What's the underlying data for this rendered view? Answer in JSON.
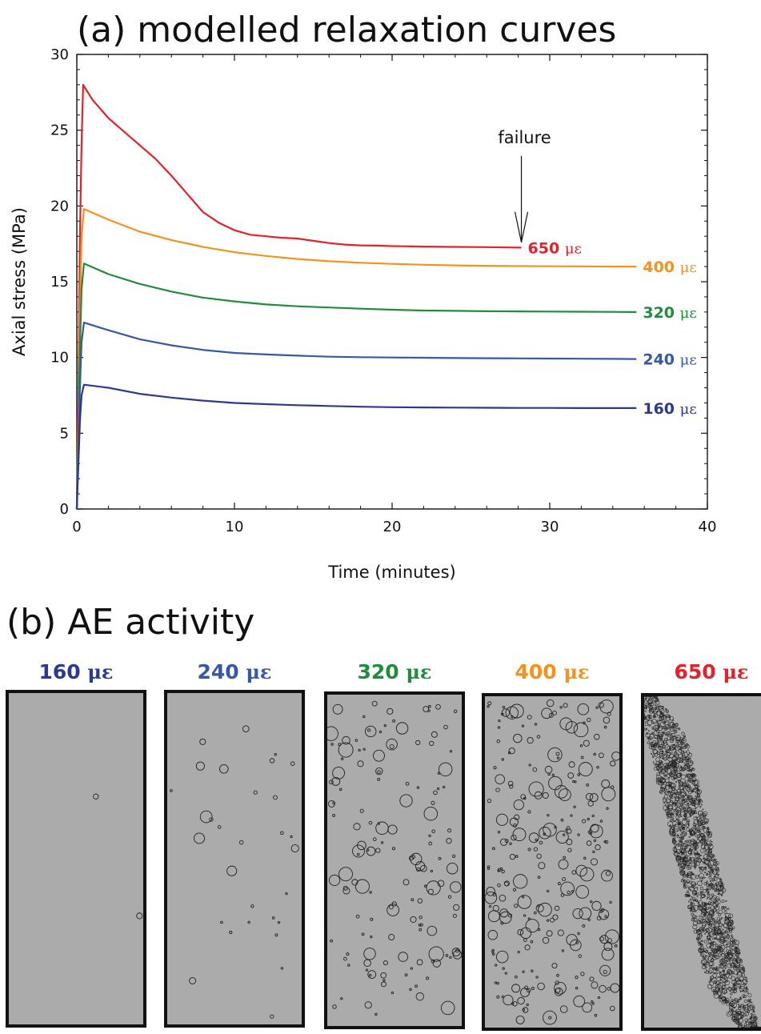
{
  "panel_a_title": "(a) modelled relaxation curves",
  "panel_b_title": "(b) AE activity",
  "unit_symbol": "με",
  "chart_data": {
    "type": "line",
    "title": "(a) modelled relaxation curves",
    "xlabel": "Time (minutes)",
    "ylabel": "Axial stress (MPa)",
    "xlim": [
      0,
      40
    ],
    "ylim": [
      0,
      30
    ],
    "xticks": [
      0,
      10,
      20,
      30,
      40
    ],
    "yticks": [
      0,
      5,
      10,
      15,
      20,
      25,
      30
    ],
    "grid": false,
    "series": [
      {
        "name": "650",
        "color": "#e8202a",
        "points": [
          [
            0,
            0
          ],
          [
            0.1,
            8
          ],
          [
            0.2,
            18
          ],
          [
            0.3,
            24
          ],
          [
            0.4,
            28
          ],
          [
            1,
            27
          ],
          [
            2,
            25.8
          ],
          [
            3,
            24.9
          ],
          [
            4,
            24
          ],
          [
            5,
            23.1
          ],
          [
            6,
            22
          ],
          [
            7,
            20.8
          ],
          [
            8,
            19.6
          ],
          [
            9,
            18.9
          ],
          [
            10,
            18.4
          ],
          [
            11,
            18.1
          ],
          [
            12,
            18
          ],
          [
            13,
            17.9
          ],
          [
            14,
            17.85
          ],
          [
            15,
            17.7
          ],
          [
            16,
            17.55
          ],
          [
            17,
            17.45
          ],
          [
            18,
            17.4
          ],
          [
            19,
            17.38
          ],
          [
            20,
            17.35
          ],
          [
            22,
            17.32
          ],
          [
            24,
            17.3
          ],
          [
            26,
            17.28
          ],
          [
            28.2,
            17.25
          ]
        ]
      },
      {
        "name": "400",
        "color": "#f5921e",
        "points": [
          [
            0,
            0
          ],
          [
            0.1,
            6
          ],
          [
            0.2,
            13
          ],
          [
            0.3,
            18
          ],
          [
            0.45,
            19.8
          ],
          [
            2,
            19.1
          ],
          [
            4,
            18.3
          ],
          [
            6,
            17.75
          ],
          [
            8,
            17.3
          ],
          [
            10,
            16.95
          ],
          [
            12,
            16.7
          ],
          [
            14,
            16.5
          ],
          [
            16,
            16.35
          ],
          [
            18,
            16.25
          ],
          [
            20,
            16.18
          ],
          [
            22,
            16.12
          ],
          [
            24,
            16.08
          ],
          [
            26,
            16.05
          ],
          [
            28,
            16.03
          ],
          [
            30,
            16.02
          ],
          [
            32,
            16.01
          ],
          [
            34,
            16
          ],
          [
            35.5,
            16
          ]
        ]
      },
      {
        "name": "320",
        "color": "#1f8c3e",
        "points": [
          [
            0,
            0
          ],
          [
            0.1,
            5
          ],
          [
            0.2,
            10.5
          ],
          [
            0.3,
            14.5
          ],
          [
            0.45,
            16.2
          ],
          [
            2,
            15.5
          ],
          [
            4,
            14.85
          ],
          [
            6,
            14.35
          ],
          [
            8,
            13.95
          ],
          [
            10,
            13.7
          ],
          [
            12,
            13.5
          ],
          [
            14,
            13.38
          ],
          [
            16,
            13.3
          ],
          [
            18,
            13.22
          ],
          [
            20,
            13.15
          ],
          [
            22,
            13.1
          ],
          [
            24,
            13.08
          ],
          [
            26,
            13.05
          ],
          [
            28,
            13.04
          ],
          [
            30,
            13.03
          ],
          [
            32,
            13.02
          ],
          [
            34,
            13.01
          ],
          [
            35.5,
            13
          ]
        ]
      },
      {
        "name": "240",
        "color": "#3757a8",
        "points": [
          [
            0,
            0
          ],
          [
            0.1,
            4
          ],
          [
            0.2,
            8
          ],
          [
            0.3,
            11
          ],
          [
            0.45,
            12.3
          ],
          [
            2,
            11.8
          ],
          [
            4,
            11.2
          ],
          [
            6,
            10.8
          ],
          [
            8,
            10.5
          ],
          [
            10,
            10.3
          ],
          [
            12,
            10.2
          ],
          [
            14,
            10.12
          ],
          [
            16,
            10.05
          ],
          [
            18,
            10.02
          ],
          [
            20,
            10
          ],
          [
            22,
            9.98
          ],
          [
            24,
            9.96
          ],
          [
            26,
            9.95
          ],
          [
            28,
            9.94
          ],
          [
            30,
            9.93
          ],
          [
            32,
            9.92
          ],
          [
            34,
            9.91
          ],
          [
            35.5,
            9.9
          ]
        ]
      },
      {
        "name": "160",
        "color": "#2b3990",
        "points": [
          [
            0,
            0
          ],
          [
            0.1,
            3
          ],
          [
            0.2,
            5.8
          ],
          [
            0.3,
            7.5
          ],
          [
            0.45,
            8.2
          ],
          [
            2,
            8
          ],
          [
            4,
            7.6
          ],
          [
            6,
            7.35
          ],
          [
            8,
            7.15
          ],
          [
            10,
            7
          ],
          [
            12,
            6.92
          ],
          [
            14,
            6.85
          ],
          [
            16,
            6.8
          ],
          [
            18,
            6.75
          ],
          [
            20,
            6.72
          ],
          [
            22,
            6.7
          ],
          [
            24,
            6.69
          ],
          [
            26,
            6.68
          ],
          [
            28,
            6.67
          ],
          [
            30,
            6.67
          ],
          [
            32,
            6.66
          ],
          [
            34,
            6.66
          ],
          [
            35.5,
            6.66
          ]
        ]
      }
    ],
    "annotations": [
      {
        "text": "failure",
        "x": 28.2,
        "y": 17.6
      }
    ]
  },
  "ae_panels": [
    {
      "label": "160",
      "color": "#2b3990",
      "count": 2
    },
    {
      "label": "240",
      "color": "#3757a8",
      "count": 30
    },
    {
      "label": "320",
      "color": "#1f8c3e",
      "count": 150
    },
    {
      "label": "400",
      "color": "#f5921e",
      "count": 280
    },
    {
      "label": "650",
      "color": "#e8202a",
      "count": 2200
    }
  ]
}
